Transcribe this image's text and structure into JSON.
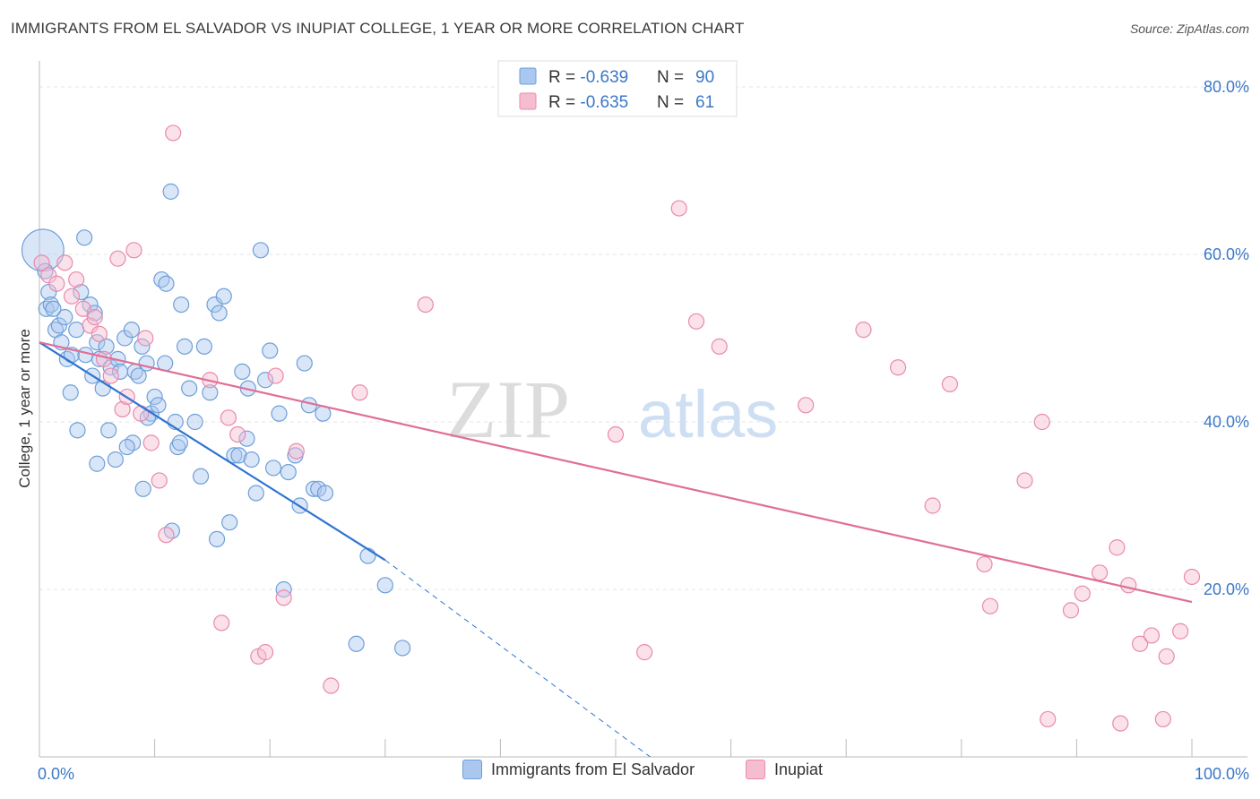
{
  "title": "IMMIGRANTS FROM EL SALVADOR VS INUPIAT COLLEGE, 1 YEAR OR MORE CORRELATION CHART",
  "source": "Source: ZipAtlas.com",
  "watermark": {
    "zip": "ZIP",
    "atlas": "atlas"
  },
  "colors": {
    "blue_fill": "#aac8ef",
    "blue_stroke": "#6e9fd9",
    "blue_line": "#2f74d0",
    "pink_fill": "#f6bdd0",
    "pink_stroke": "#e98aab",
    "pink_line": "#e06e98",
    "tick_text": "#3b78c7"
  },
  "legend": {
    "blue": {
      "r_label": "R = ",
      "r_value": "-0.639",
      "n_label": "N = ",
      "n_value": "90"
    },
    "pink": {
      "r_label": "R = ",
      "r_value": "-0.635",
      "n_label": "N = ",
      "n_value": "61"
    }
  },
  "chart_data": {
    "type": "scatter",
    "title": "IMMIGRANTS FROM EL SALVADOR VS INUPIAT COLLEGE, 1 YEAR OR MORE CORRELATION CHART",
    "xlabel": "",
    "ylabel": "College, 1 year or more",
    "xlim": [
      0,
      100
    ],
    "ylim": [
      0,
      80
    ],
    "x_tick_labels": [
      "0.0%",
      "100.0%"
    ],
    "y_ticks": [
      20,
      40,
      60,
      80
    ],
    "y_tick_labels": [
      "20.0%",
      "40.0%",
      "60.0%",
      "80.0%"
    ],
    "grid": true,
    "legend_position": "top-center",
    "series": [
      {
        "name": "Immigrants from El Salvador",
        "color": "#6e9fd9",
        "points": [
          [
            0.3,
            60.5
          ],
          [
            0.5,
            58.0
          ],
          [
            0.8,
            55.5
          ],
          [
            0.6,
            53.5
          ],
          [
            1.0,
            54.0
          ],
          [
            1.4,
            51.0
          ],
          [
            1.7,
            51.5
          ],
          [
            1.9,
            49.5
          ],
          [
            2.2,
            52.5
          ],
          [
            2.4,
            47.5
          ],
          [
            2.8,
            48.0
          ],
          [
            3.2,
            51.0
          ],
          [
            3.6,
            55.5
          ],
          [
            4.0,
            48.0
          ],
          [
            4.4,
            54.0
          ],
          [
            4.8,
            53.0
          ],
          [
            5.0,
            49.5
          ],
          [
            5.2,
            47.5
          ],
          [
            5.5,
            44.0
          ],
          [
            5.8,
            49.0
          ],
          [
            6.2,
            46.5
          ],
          [
            6.8,
            47.5
          ],
          [
            7.0,
            46.0
          ],
          [
            7.4,
            50.0
          ],
          [
            8.0,
            51.0
          ],
          [
            8.3,
            46.0
          ],
          [
            8.6,
            45.5
          ],
          [
            8.9,
            49.0
          ],
          [
            9.3,
            47.0
          ],
          [
            9.7,
            41.0
          ],
          [
            10.0,
            43.0
          ],
          [
            10.3,
            42.0
          ],
          [
            10.6,
            57.0
          ],
          [
            11.0,
            56.5
          ],
          [
            11.5,
            27.0
          ],
          [
            11.8,
            40.0
          ],
          [
            12.0,
            37.0
          ],
          [
            12.3,
            54.0
          ],
          [
            12.6,
            49.0
          ],
          [
            13.0,
            44.0
          ],
          [
            13.5,
            40.0
          ],
          [
            14.0,
            33.5
          ],
          [
            14.3,
            49.0
          ],
          [
            14.8,
            43.5
          ],
          [
            15.2,
            54.0
          ],
          [
            15.6,
            53.0
          ],
          [
            16.0,
            55.0
          ],
          [
            16.5,
            28.0
          ],
          [
            16.9,
            36.0
          ],
          [
            17.3,
            36.0
          ],
          [
            17.6,
            46.0
          ],
          [
            18.0,
            38.0
          ],
          [
            18.4,
            35.5
          ],
          [
            18.8,
            31.5
          ],
          [
            19.2,
            60.5
          ],
          [
            19.6,
            45.0
          ],
          [
            20.3,
            34.5
          ],
          [
            20.8,
            41.0
          ],
          [
            21.2,
            20.0
          ],
          [
            21.6,
            34.0
          ],
          [
            22.2,
            36.0
          ],
          [
            22.6,
            30.0
          ],
          [
            23.0,
            47.0
          ],
          [
            23.4,
            42.0
          ],
          [
            23.8,
            32.0
          ],
          [
            24.2,
            32.0
          ],
          [
            24.6,
            41.0
          ],
          [
            24.8,
            31.5
          ],
          [
            27.5,
            13.5
          ],
          [
            28.5,
            24.0
          ],
          [
            30.0,
            20.5
          ],
          [
            31.5,
            13.0
          ],
          [
            11.4,
            67.5
          ],
          [
            3.9,
            62.0
          ],
          [
            8.1,
            37.5
          ],
          [
            5.0,
            35.0
          ],
          [
            7.6,
            37.0
          ],
          [
            6.0,
            39.0
          ],
          [
            4.6,
            45.5
          ],
          [
            9.4,
            40.5
          ],
          [
            2.7,
            43.5
          ],
          [
            12.2,
            37.5
          ],
          [
            3.3,
            39.0
          ],
          [
            1.2,
            53.5
          ],
          [
            10.9,
            47.0
          ],
          [
            15.4,
            26.0
          ],
          [
            18.1,
            44.0
          ],
          [
            20.0,
            48.5
          ],
          [
            9.0,
            32.0
          ],
          [
            6.6,
            35.5
          ]
        ],
        "sizes": {
          "0": 28
        }
      },
      {
        "name": "Inupiat",
        "color": "#e98aab",
        "points": [
          [
            0.2,
            59.0
          ],
          [
            0.8,
            57.5
          ],
          [
            1.5,
            56.5
          ],
          [
            2.2,
            59.0
          ],
          [
            2.8,
            55.0
          ],
          [
            3.2,
            57.0
          ],
          [
            3.8,
            53.5
          ],
          [
            4.4,
            51.5
          ],
          [
            4.8,
            52.5
          ],
          [
            5.2,
            50.5
          ],
          [
            5.6,
            47.5
          ],
          [
            6.2,
            45.5
          ],
          [
            6.8,
            59.5
          ],
          [
            7.2,
            41.5
          ],
          [
            7.6,
            43.0
          ],
          [
            8.2,
            60.5
          ],
          [
            8.8,
            41.0
          ],
          [
            9.2,
            50.0
          ],
          [
            9.7,
            37.5
          ],
          [
            10.4,
            33.0
          ],
          [
            11.0,
            26.5
          ],
          [
            11.6,
            74.5
          ],
          [
            14.8,
            45.0
          ],
          [
            15.8,
            16.0
          ],
          [
            16.4,
            40.5
          ],
          [
            17.2,
            38.5
          ],
          [
            19.0,
            12.0
          ],
          [
            19.6,
            12.5
          ],
          [
            20.5,
            45.5
          ],
          [
            21.2,
            19.0
          ],
          [
            22.3,
            36.5
          ],
          [
            25.3,
            8.5
          ],
          [
            27.8,
            43.5
          ],
          [
            33.5,
            54.0
          ],
          [
            50.0,
            38.5
          ],
          [
            52.5,
            12.5
          ],
          [
            55.5,
            65.5
          ],
          [
            57.0,
            52.0
          ],
          [
            59.0,
            49.0
          ],
          [
            66.5,
            42.0
          ],
          [
            71.5,
            51.0
          ],
          [
            74.5,
            46.5
          ],
          [
            77.5,
            30.0
          ],
          [
            79.0,
            44.5
          ],
          [
            82.0,
            23.0
          ],
          [
            82.5,
            18.0
          ],
          [
            85.5,
            33.0
          ],
          [
            87.0,
            40.0
          ],
          [
            87.5,
            4.5
          ],
          [
            89.5,
            17.5
          ],
          [
            90.5,
            19.5
          ],
          [
            92.0,
            22.0
          ],
          [
            93.5,
            25.0
          ],
          [
            93.8,
            4.0
          ],
          [
            94.5,
            20.5
          ],
          [
            95.5,
            13.5
          ],
          [
            96.5,
            14.5
          ],
          [
            97.5,
            4.5
          ],
          [
            97.8,
            12.0
          ],
          [
            99.0,
            15.0
          ],
          [
            100.0,
            21.5
          ]
        ]
      }
    ],
    "trend_lines": [
      {
        "series": "Immigrants from El Salvador",
        "x": [
          0,
          30
        ],
        "y": [
          49.5,
          23.5
        ],
        "dashed_extension_to": [
          53,
          0
        ]
      },
      {
        "series": "Inupiat",
        "x": [
          0,
          100
        ],
        "y": [
          49.5,
          18.5
        ]
      }
    ]
  },
  "bottom_legend": [
    "Immigrants from El Salvador",
    "Inupiat"
  ]
}
